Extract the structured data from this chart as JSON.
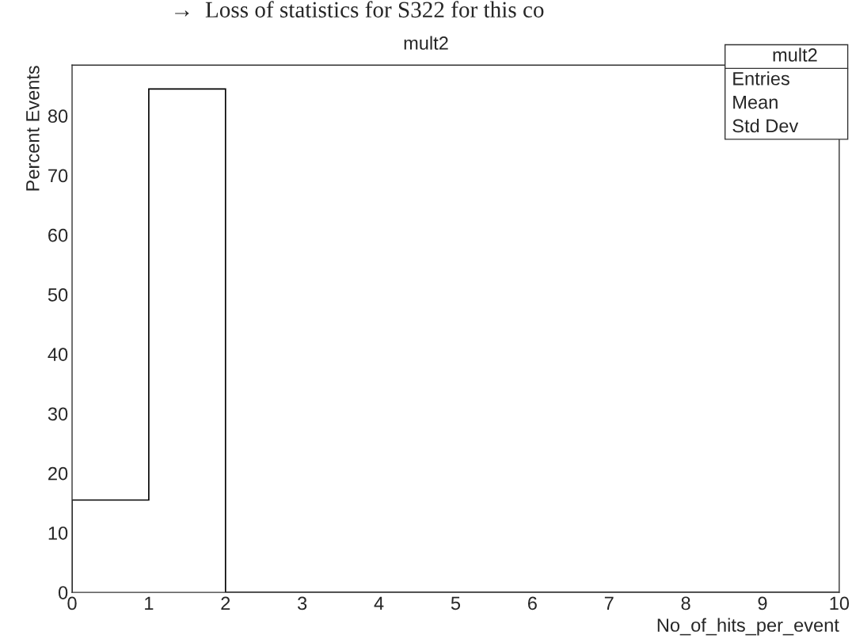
{
  "chart_data": {
    "type": "histogram",
    "title": "mult2",
    "xlabel": "No_of_hits_per_event",
    "ylabel": "Percent Events",
    "bins": [
      0,
      1,
      2,
      3,
      4,
      5,
      6,
      7,
      8,
      9,
      10
    ],
    "values": [
      15.5,
      84.5,
      0,
      0,
      0,
      0,
      0,
      0,
      0,
      0
    ],
    "color": "#000000",
    "xlim": [
      0,
      10
    ],
    "xticks": [
      0,
      1,
      2,
      3,
      4,
      5,
      6,
      7,
      8,
      9,
      10
    ],
    "ylim": [
      0,
      88.5
    ],
    "yticks": [
      0,
      10,
      20,
      30,
      40,
      50,
      60,
      70,
      80
    ],
    "grid": false,
    "annotations": [
      "→  Loss of statistics for S322 for this co",
      "mult2",
      "Entries",
      "Mean",
      "Std Dev"
    ]
  }
}
